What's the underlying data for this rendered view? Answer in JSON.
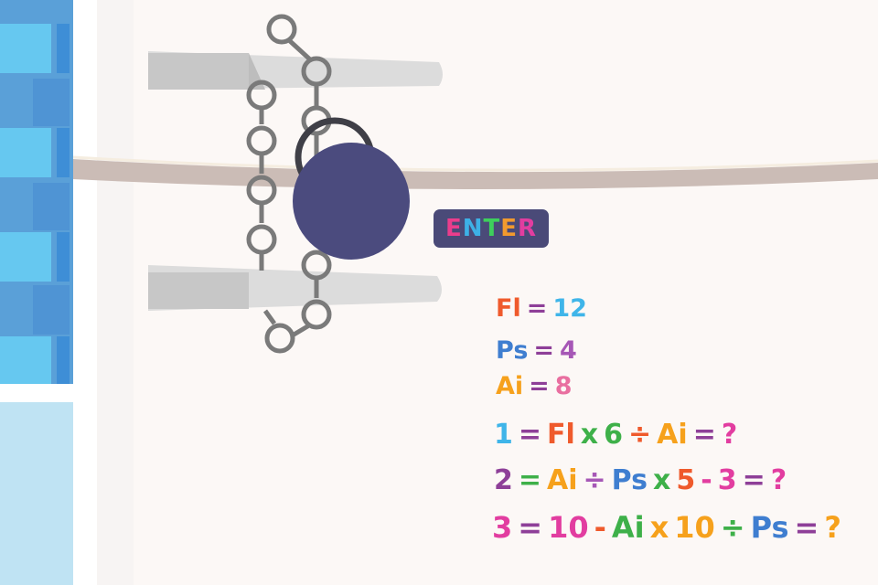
{
  "scene": {
    "colors": {
      "door": "#fcf8f6",
      "frame_white": "#ffffff",
      "wall_tile_blue": "#5aa0d8",
      "wall_tile_light": "#66c8f0",
      "wall_lower": "#bfe3f3",
      "shelf": "#cbbcb6",
      "shelf_edge": "#f5ede0",
      "hinge": "#dcdcdc",
      "hinge_shadow": "#c9c9c9",
      "chain": "#7a7a7a",
      "padlock_body": "#4b4b7e",
      "padlock_shackle": "#3f3f47",
      "button_bg": "#4a4a78"
    },
    "icons": [
      "padlock-icon",
      "chain-icon",
      "hinge-icon"
    ]
  },
  "enter_button": {
    "letters": [
      "E",
      "N",
      "T",
      "E",
      "R"
    ],
    "colors": [
      "#ec3d8c",
      "#3db1e6",
      "#3ecf5c",
      "#f29a2e",
      "#e23da0"
    ]
  },
  "equations": [
    {
      "tokens": [
        "Fl",
        "=",
        "12"
      ],
      "colors": [
        "#ef5a2c",
        "#8e3f98",
        "#3fb5e9"
      ]
    },
    {
      "tokens": [
        "Ps",
        "=",
        "4"
      ],
      "colors": [
        "#3f7ed0",
        "#8e3f98",
        "#a657b6"
      ]
    },
    {
      "tokens": [
        "Ai",
        "=",
        "8"
      ],
      "colors": [
        "#f6a11c",
        "#8e3f98",
        "#e96fa0"
      ]
    },
    {
      "tokens": [
        "1",
        "=",
        "Fl",
        "x",
        "6",
        "÷",
        "Ai",
        "=",
        "?"
      ],
      "colors": [
        "#3fb5e9",
        "#8e3f98",
        "#ef5a2c",
        "#3eb049",
        "#3eb049",
        "#ef5a2c",
        "#f6a11c",
        "#8e3f98",
        "#e23da0"
      ]
    },
    {
      "tokens": [
        "2",
        "=",
        "Ai",
        "÷",
        "Ps",
        "x",
        "5",
        "-",
        "3",
        "=",
        "?"
      ],
      "colors": [
        "#8e3f98",
        "#3eb049",
        "#f6a11c",
        "#a657b6",
        "#3f7ed0",
        "#3eb049",
        "#ef5a2c",
        "#e23da0",
        "#e23da0",
        "#8e3f98",
        "#e23da0"
      ]
    },
    {
      "tokens": [
        "3",
        "=",
        "10",
        "-",
        "Ai",
        "x",
        "10",
        "÷",
        "Ps",
        "=",
        "?"
      ],
      "colors": [
        "#e23da0",
        "#8e3f98",
        "#e23da0",
        "#ef5a2c",
        "#3eb049",
        "#f6a11c",
        "#f6a11c",
        "#3eb049",
        "#3f7ed0",
        "#8e3f98",
        "#f6a11c"
      ]
    }
  ]
}
